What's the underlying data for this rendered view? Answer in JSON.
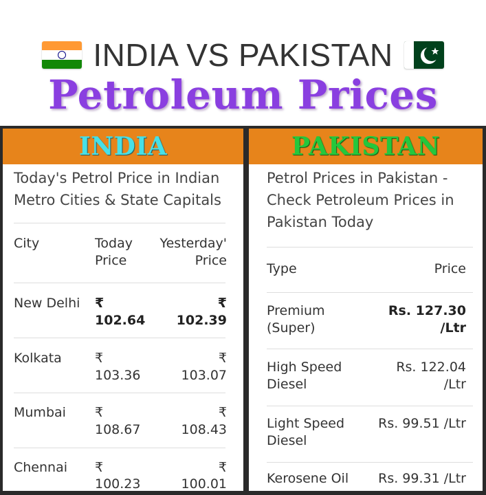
{
  "header": {
    "line1": "INDIA VS PAKISTAN",
    "title": "Petroleum Prices"
  },
  "india": {
    "banner": "INDIA",
    "heading": "Today's Petrol Price in Indian Metro Cities & State Capitals",
    "columns": {
      "city": "City",
      "today": "Today Price",
      "yesterday": "Yesterday' Price"
    },
    "currency": "₹",
    "rows": [
      {
        "city": "New Delhi",
        "today": "102.64",
        "yesterday": "102.39"
      },
      {
        "city": "Kolkata",
        "today": "103.36",
        "yesterday": "103.07"
      },
      {
        "city": "Mumbai",
        "today": "108.67",
        "yesterday": "108.43"
      },
      {
        "city": "Chennai",
        "today": "100.23",
        "yesterday": "100.01"
      }
    ]
  },
  "pakistan": {
    "banner": "PAKISTAN",
    "heading": "Petrol Prices in Pakistan - Check Petroleum Prices in Pakistan Today",
    "columns": {
      "type": "Type",
      "price": "Price"
    },
    "rows": [
      {
        "type": "Premium (Super)",
        "price": "Rs. 127.30 /Ltr"
      },
      {
        "type": "High Speed Diesel",
        "price": "Rs. 122.04 /Ltr"
      },
      {
        "type": "Light Speed Diesel",
        "price": "Rs. 99.51 /Ltr"
      },
      {
        "type": "Kerosene Oil",
        "price": "Rs. 99.31 /Ltr"
      }
    ]
  },
  "colors": {
    "title_purple": "#8a3fe0",
    "banner_orange": "#e7841b",
    "india_banner_text": "#48e0e6",
    "pakistan_banner_text": "#25c73c"
  },
  "icons": {
    "left_flag": "india-flag-icon",
    "right_flag": "pakistan-flag-icon"
  }
}
